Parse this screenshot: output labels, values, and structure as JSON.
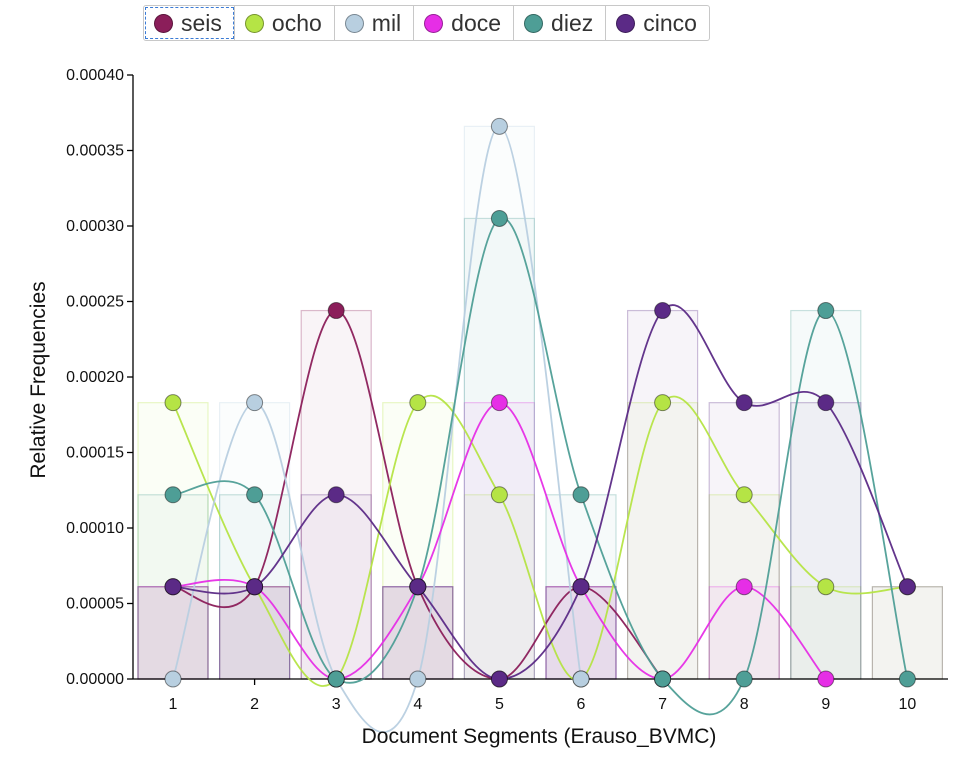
{
  "chart_data": {
    "type": "line",
    "title": "",
    "xlabel": "Document Segments (Erauso_BVMC)",
    "ylabel": "Relative Frequencies",
    "categories": [
      "1",
      "2",
      "3",
      "4",
      "5",
      "6",
      "7",
      "8",
      "9",
      "10"
    ],
    "x": [
      1,
      2,
      3,
      4,
      5,
      6,
      7,
      8,
      9,
      10
    ],
    "ylim": [
      0,
      0.0004
    ],
    "yticks": [
      "0.00000",
      "0.00005",
      "0.00010",
      "0.00015",
      "0.00020",
      "0.00025",
      "0.00030",
      "0.00035",
      "0.00040"
    ],
    "legend_position": "top",
    "active_legend": "seis",
    "series": [
      {
        "name": "seis",
        "color": "#8b1e5a",
        "values": [
          6.11e-05,
          6.11e-05,
          0.000244,
          6.11e-05,
          0,
          6.11e-05,
          0,
          null,
          null,
          null
        ]
      },
      {
        "name": "ocho",
        "color": "#b5e445",
        "values": [
          0.000183,
          6.11e-05,
          0,
          0.000183,
          0.000122,
          0,
          0.000183,
          0.000122,
          6.11e-05,
          6.11e-05
        ]
      },
      {
        "name": "mil",
        "color": "#b8cfe0",
        "values": [
          0,
          0.000183,
          0,
          0,
          0.000366,
          0,
          null,
          null,
          null,
          null
        ]
      },
      {
        "name": "doce",
        "color": "#e62ee6",
        "values": [
          6.11e-05,
          6.11e-05,
          0,
          6.11e-05,
          0.000183,
          6.11e-05,
          0,
          6.11e-05,
          0,
          null
        ]
      },
      {
        "name": "diez",
        "color": "#4e9e96",
        "values": [
          0.000122,
          0.000122,
          0,
          6.11e-05,
          0.000305,
          0.000122,
          0,
          0,
          0.000244,
          0
        ]
      },
      {
        "name": "cinco",
        "color": "#5b2a86",
        "values": [
          6.11e-05,
          6.11e-05,
          0.000122,
          6.11e-05,
          0,
          6.11e-05,
          0.000244,
          0.000183,
          0.000183,
          6.11e-05
        ]
      }
    ]
  }
}
